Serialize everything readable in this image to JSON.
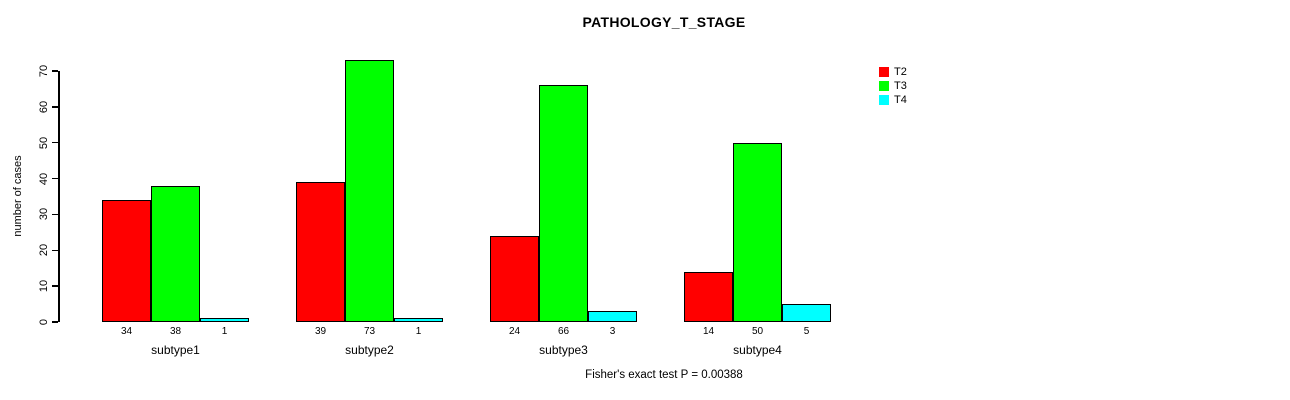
{
  "chart_data": {
    "type": "bar",
    "title": "PATHOLOGY_T_STAGE",
    "xlabel": "",
    "ylabel": "number of cases",
    "categories": [
      "subtype1",
      "subtype2",
      "subtype3",
      "subtype4"
    ],
    "series": [
      {
        "name": "T2",
        "color": "#ff0000",
        "values": [
          34,
          39,
          24,
          14
        ]
      },
      {
        "name": "T3",
        "color": "#00ff00",
        "values": [
          38,
          73,
          66,
          50
        ]
      },
      {
        "name": "T4",
        "color": "#00ffff",
        "values": [
          1,
          1,
          3,
          5
        ]
      }
    ],
    "yticks": [
      0,
      10,
      20,
      30,
      40,
      50,
      60,
      70
    ],
    "ylim": [
      0,
      73
    ],
    "grid": false,
    "bar_value_labels_shown": true,
    "legend_position": "right",
    "bar_border_color": "#000000",
    "annotation": "Fisher's exact test P = 0.00388"
  }
}
